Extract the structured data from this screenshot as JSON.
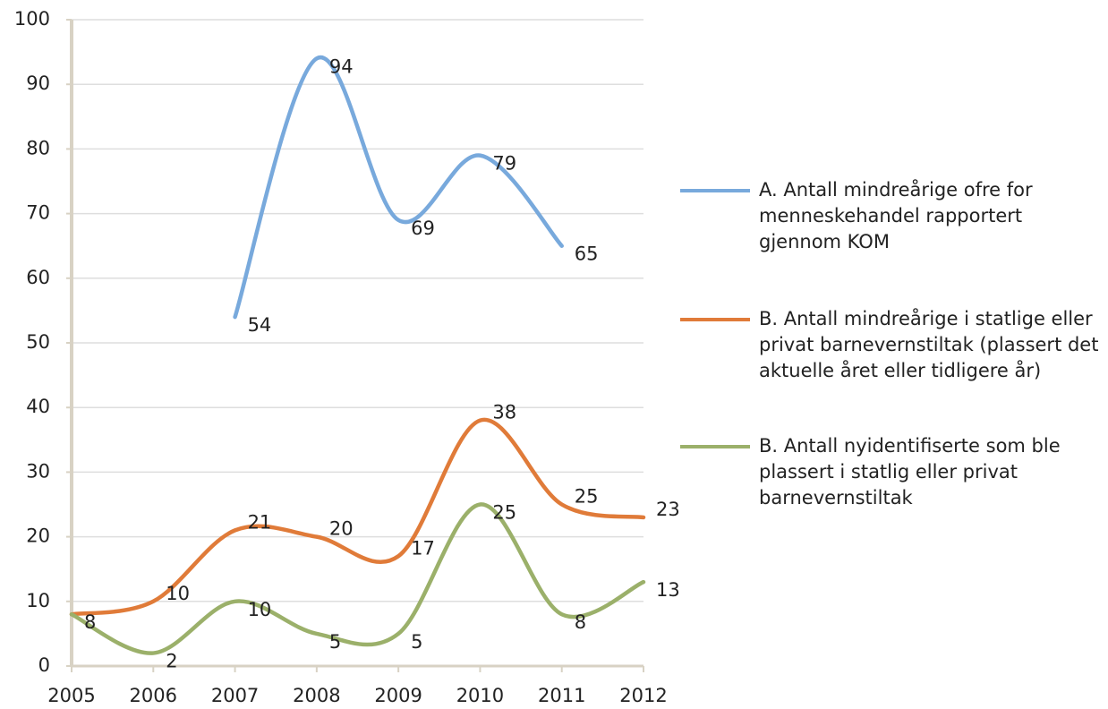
{
  "chart_data": {
    "type": "line",
    "categories": [
      "2005",
      "2006",
      "2007",
      "2008",
      "2009",
      "2010",
      "2011",
      "2012"
    ],
    "series": [
      {
        "name": "A. Antall mindreårige ofre for menneskehandel rapportert gjennom KOM",
        "color": "#78a9dc",
        "values": [
          null,
          null,
          54,
          94,
          69,
          79,
          65,
          null
        ]
      },
      {
        "name": "B. Antall mindreårige i statlige eller privat barnevernstiltak (plassert det aktuelle året eller tidligere år)",
        "color": "#e07b39",
        "values": [
          8,
          10,
          21,
          20,
          17,
          38,
          25,
          23
        ],
        "value_labels": [
          null,
          "10",
          "21",
          "20",
          "17",
          "38",
          "25",
          "23"
        ]
      },
      {
        "name": "B. Antall nyidentifiserte som ble plassert i statlig eller privat barnevernstiltak",
        "color": "#9bb06a",
        "values": [
          8,
          2,
          10,
          5,
          5,
          25,
          8,
          13
        ]
      }
    ],
    "ylim": [
      0,
      100
    ],
    "yticks": [
      0,
      10,
      20,
      30,
      40,
      50,
      60,
      70,
      80,
      90,
      100
    ],
    "grid": true
  }
}
